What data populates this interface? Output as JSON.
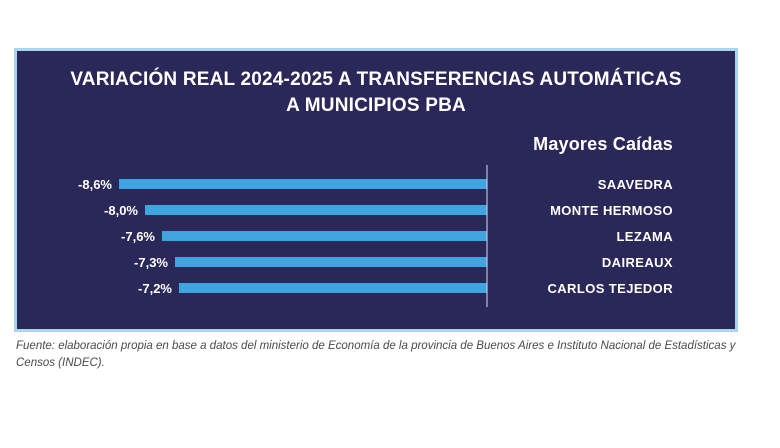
{
  "header": {
    "title_line1": "VARIACIÓN REAL 2024-2025 A TRANSFERENCIAS AUTOMÁTICAS",
    "title_line2": "A MUNICIPIOS PBA",
    "subtitle": "Mayores Caídas"
  },
  "colors": {
    "panel_background": "#2A2759",
    "panel_border": "#A9D6EE",
    "bar": "#3FA4DF",
    "title_text": "#ffffff",
    "footer_text": "#4a4a4a"
  },
  "chart_data": {
    "type": "bar",
    "orientation": "horizontal",
    "title": "VARIACIÓN REAL 2024-2025 A TRANSFERENCIAS AUTOMÁTICAS A MUNICIPIOS PBA",
    "subtitle": "Mayores Caídas",
    "categories": [
      "SAAVEDRA",
      "MONTE HERMOSO",
      "LEZAMA",
      "DAIREAUX",
      "CARLOS TEJEDOR"
    ],
    "values": [
      -8.6,
      -8.0,
      -7.6,
      -7.3,
      -7.2
    ],
    "value_labels": [
      "-8,6%",
      "-8,0%",
      "-7,6%",
      "-7,3%",
      "-7,2%"
    ],
    "xlim": [
      -8.6,
      0
    ],
    "grid": false,
    "legend": false,
    "baseline_axis": "right edge at 0, bars extend left (negative values)"
  },
  "footer": {
    "source": "Fuente: elaboración propia en base a datos del ministerio de Economía de la provincia de Buenos Aires e Instituto Nacional de Estadísticas y Censos (INDEC)."
  }
}
